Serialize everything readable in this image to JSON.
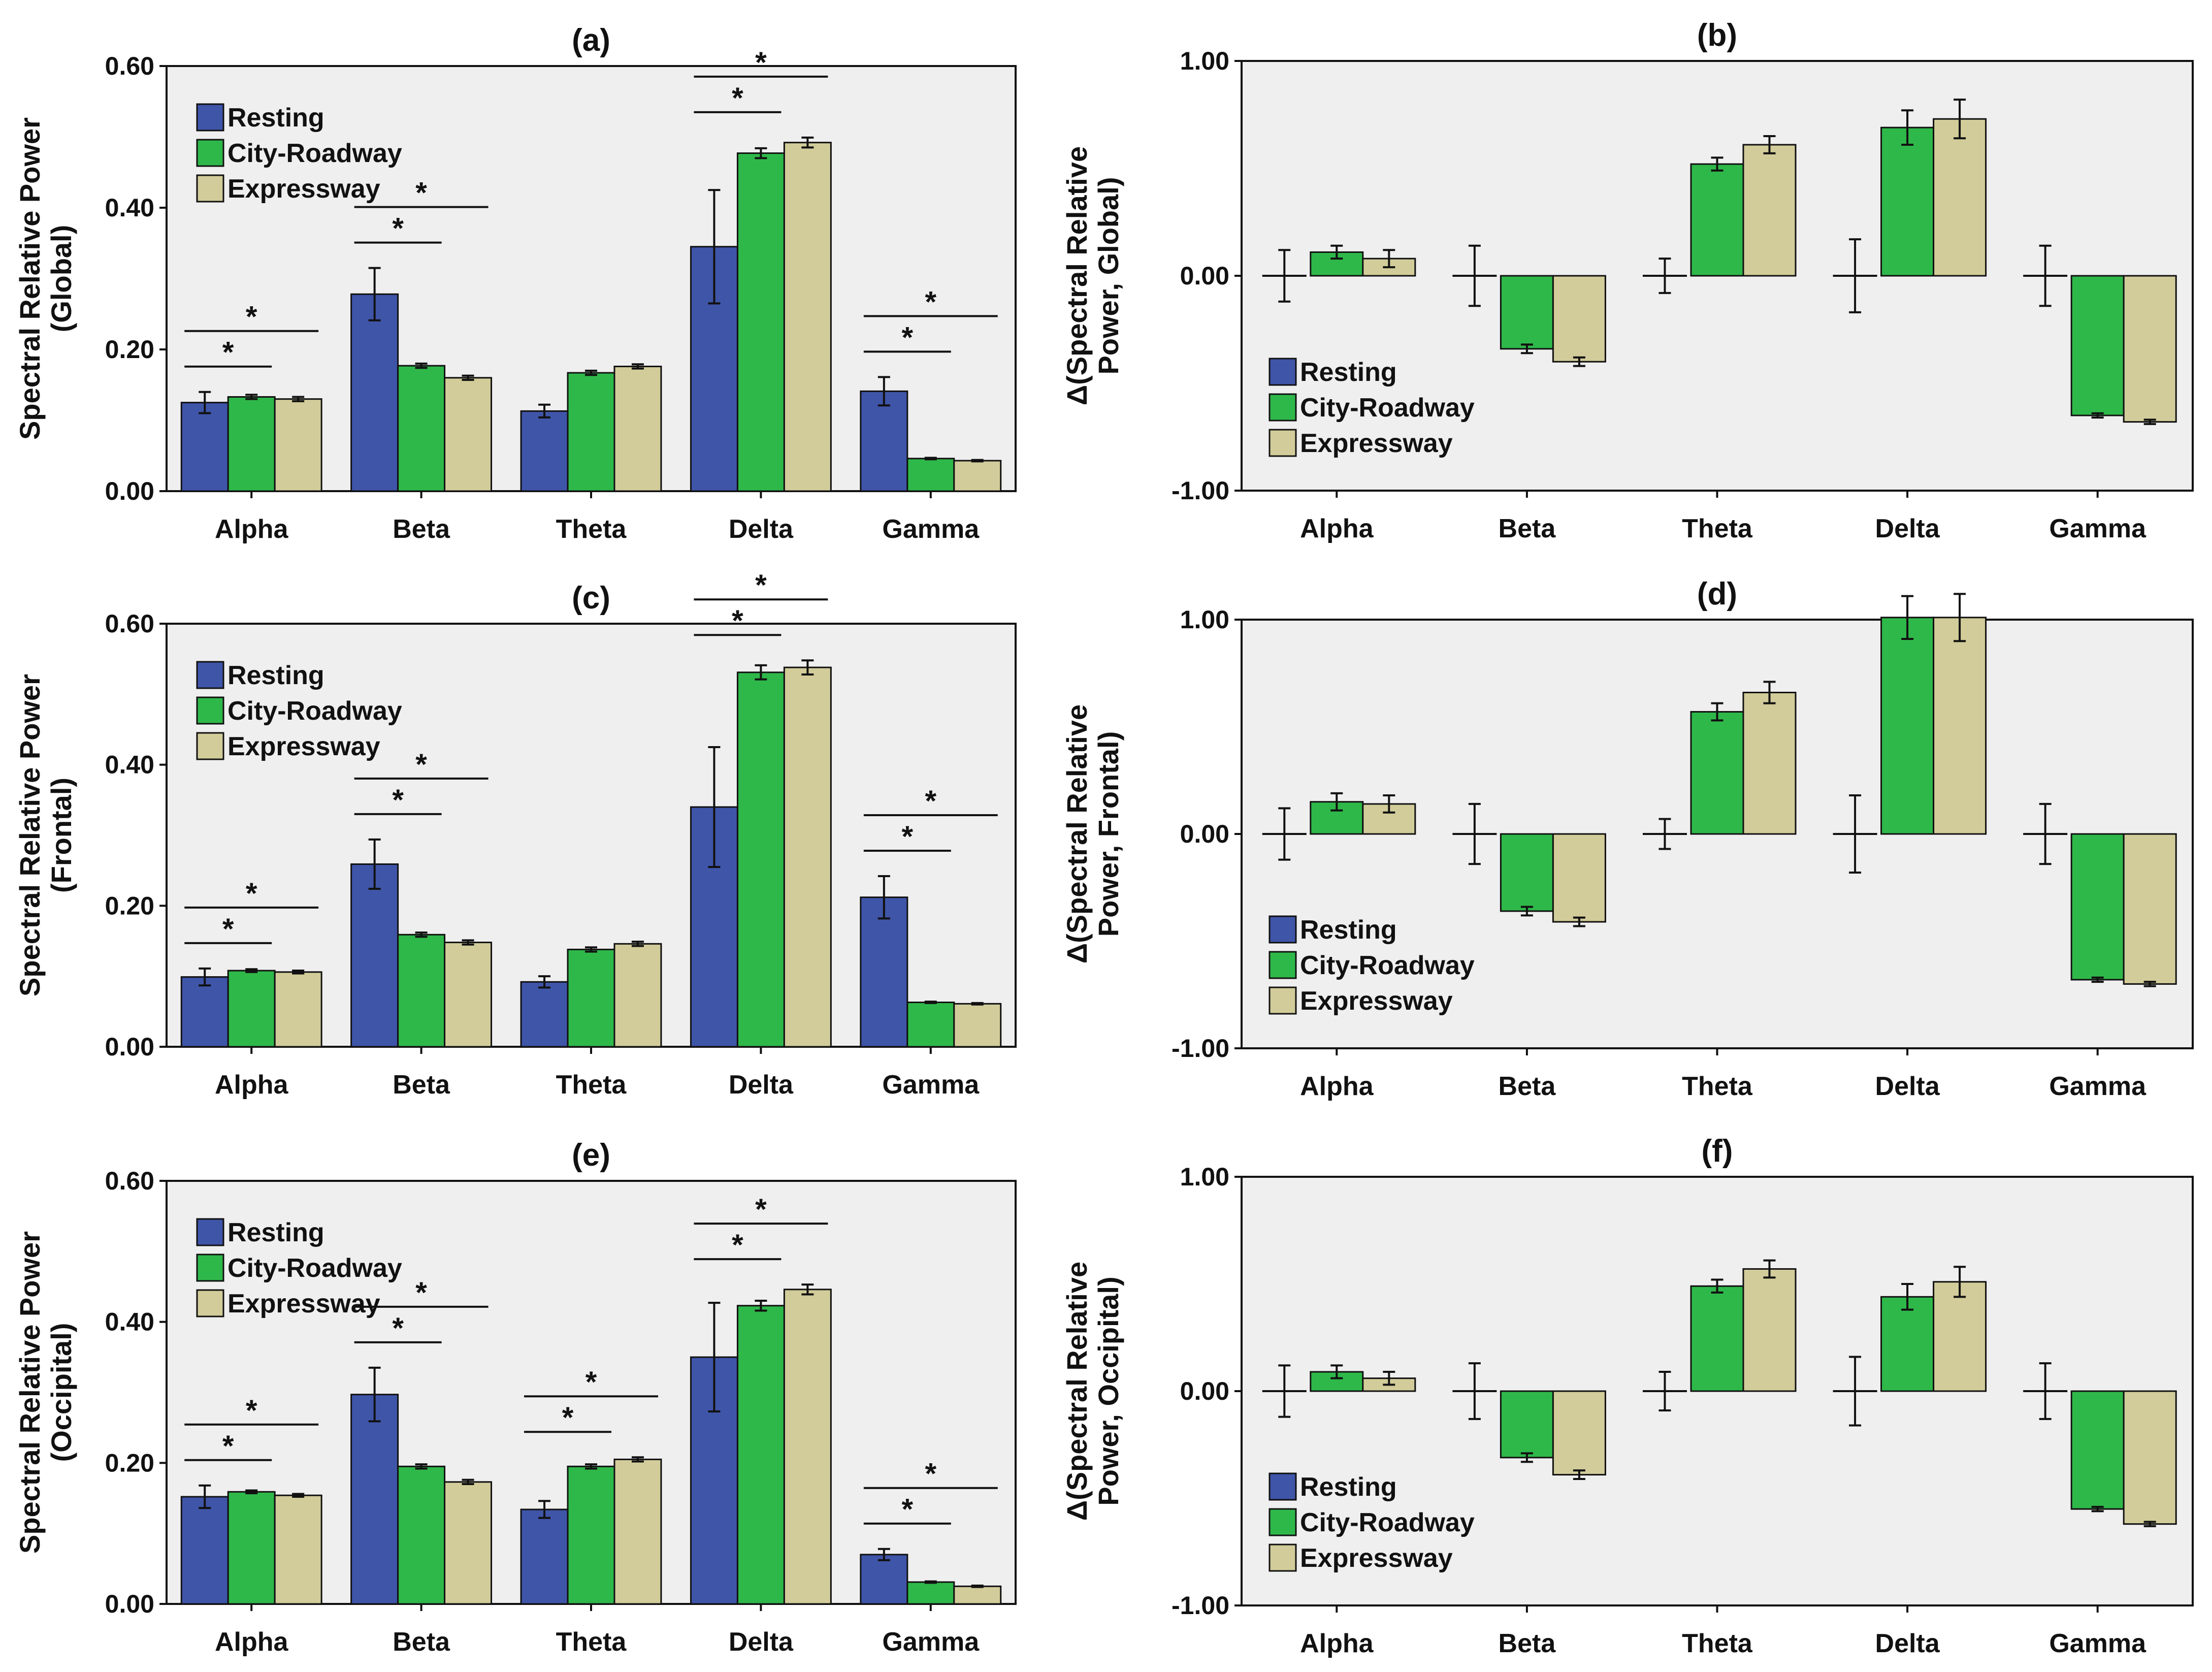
{
  "colors": {
    "resting": "#3f55a8",
    "city_roadway": "#2fb84a",
    "expressway": "#d2cc9a",
    "plot_bg": "#efefef",
    "axis": "#111111"
  },
  "chart_data": [
    {
      "id": "a",
      "title": "(a)",
      "type": "bar",
      "ylabel": [
        "Spectral Relative Power",
        "(Global)"
      ],
      "ylim": [
        0,
        0.6
      ],
      "yticks": [
        "0.00",
        "0.20",
        "0.40",
        "0.60"
      ],
      "ytick_values": [
        0,
        0.2,
        0.4,
        0.6
      ],
      "categories": [
        "Alpha",
        "Beta",
        "Theta",
        "Delta",
        "Gamma"
      ],
      "legend": [
        "Resting",
        "City-Roadway",
        "Expressway"
      ],
      "legend_position": "top-left",
      "series": [
        {
          "name": "Resting",
          "values": [
            0.125,
            0.278,
            0.113,
            0.345,
            0.141
          ],
          "err": [
            0.015,
            0.037,
            0.009,
            0.08,
            0.02
          ]
        },
        {
          "name": "City-Roadway",
          "values": [
            0.133,
            0.177,
            0.167,
            0.477,
            0.046
          ],
          "err": [
            0.003,
            0.003,
            0.003,
            0.007,
            0.001
          ]
        },
        {
          "name": "Expressway",
          "values": [
            0.13,
            0.16,
            0.176,
            0.492,
            0.043
          ],
          "err": [
            0.003,
            0.003,
            0.003,
            0.007,
            0.001
          ]
        }
      ],
      "significance": [
        {
          "category": 0,
          "pairs": [
            [
              0,
              1
            ],
            [
              0,
              2
            ]
          ],
          "label": "*"
        },
        {
          "category": 1,
          "pairs": [
            [
              0,
              1
            ],
            [
              0,
              2
            ]
          ],
          "label": "*"
        },
        {
          "category": 3,
          "pairs": [
            [
              0,
              1
            ],
            [
              0,
              2
            ]
          ],
          "label": "*"
        },
        {
          "category": 4,
          "pairs": [
            [
              0,
              1
            ],
            [
              0,
              2
            ]
          ],
          "label": "*"
        }
      ]
    },
    {
      "id": "b",
      "title": "(b)",
      "type": "bar",
      "ylabel": [
        "Δ(Spectral Relative",
        "Power, Global)"
      ],
      "ylim": [
        -1,
        1.0
      ],
      "yticks": [
        "-1.00",
        "0.00",
        "1.00"
      ],
      "ytick_values": [
        -1,
        0,
        1
      ],
      "categories": [
        "Alpha",
        "Beta",
        "Theta",
        "Delta",
        "Gamma"
      ],
      "legend": [
        "Resting",
        "City-Roadway",
        "Expressway"
      ],
      "legend_position": "bottom-left",
      "series": [
        {
          "name": "Resting",
          "values": [
            0,
            0,
            0,
            0,
            0
          ],
          "err": [
            0.12,
            0.14,
            0.08,
            0.17,
            0.14
          ]
        },
        {
          "name": "City-Roadway",
          "values": [
            0.11,
            -0.34,
            0.52,
            0.69,
            -0.65
          ],
          "err": [
            0.03,
            0.02,
            0.03,
            0.08,
            0.01
          ]
        },
        {
          "name": "Expressway",
          "values": [
            0.08,
            -0.4,
            0.61,
            0.73,
            -0.68
          ],
          "err": [
            0.04,
            0.02,
            0.04,
            0.09,
            0.01
          ]
        }
      ]
    },
    {
      "id": "c",
      "title": "(c)",
      "type": "bar",
      "ylabel": [
        "Spectral Relative Power",
        "(Frontal)"
      ],
      "ylim": [
        0,
        0.6
      ],
      "yticks": [
        "0.00",
        "0.20",
        "0.40",
        "0.60"
      ],
      "ytick_values": [
        0,
        0.2,
        0.4,
        0.6
      ],
      "categories": [
        "Alpha",
        "Beta",
        "Theta",
        "Delta",
        "Gamma"
      ],
      "legend": [
        "Resting",
        "City-Roadway",
        "Expressway"
      ],
      "legend_position": "top-left",
      "series": [
        {
          "name": "Resting",
          "values": [
            0.099,
            0.259,
            0.092,
            0.34,
            0.212
          ],
          "err": [
            0.012,
            0.035,
            0.008,
            0.085,
            0.03
          ]
        },
        {
          "name": "City-Roadway",
          "values": [
            0.108,
            0.159,
            0.138,
            0.531,
            0.063
          ],
          "err": [
            0.002,
            0.003,
            0.003,
            0.01,
            0.001
          ]
        },
        {
          "name": "Expressway",
          "values": [
            0.106,
            0.148,
            0.146,
            0.538,
            0.061
          ],
          "err": [
            0.002,
            0.003,
            0.003,
            0.01,
            0.001
          ]
        }
      ],
      "significance": [
        {
          "category": 0,
          "pairs": [
            [
              0,
              1
            ],
            [
              0,
              2
            ]
          ],
          "label": "*"
        },
        {
          "category": 1,
          "pairs": [
            [
              0,
              1
            ],
            [
              0,
              2
            ]
          ],
          "label": "*"
        },
        {
          "category": 3,
          "pairs": [
            [
              0,
              1
            ],
            [
              0,
              2
            ]
          ],
          "label": "*"
        },
        {
          "category": 4,
          "pairs": [
            [
              0,
              1
            ],
            [
              0,
              2
            ]
          ],
          "label": "*"
        }
      ]
    },
    {
      "id": "d",
      "title": "(d)",
      "type": "bar",
      "ylabel": [
        "Δ(Spectral Relative",
        "Power, Frontal)"
      ],
      "ylim": [
        -1,
        1.0
      ],
      "yticks": [
        "-1.00",
        "0.00",
        "1.00"
      ],
      "ytick_values": [
        -1,
        0,
        1
      ],
      "categories": [
        "Alpha",
        "Beta",
        "Theta",
        "Delta",
        "Gamma"
      ],
      "legend": [
        "Resting",
        "City-Roadway",
        "Expressway"
      ],
      "legend_position": "bottom-left",
      "series": [
        {
          "name": "Resting",
          "values": [
            0,
            0,
            0,
            0,
            0
          ],
          "err": [
            0.12,
            0.14,
            0.07,
            0.18,
            0.14
          ]
        },
        {
          "name": "City-Roadway",
          "values": [
            0.15,
            -0.36,
            0.57,
            1.01,
            -0.68
          ],
          "err": [
            0.04,
            0.02,
            0.04,
            0.1,
            0.01
          ]
        },
        {
          "name": "Expressway",
          "values": [
            0.14,
            -0.41,
            0.66,
            1.01,
            -0.7
          ],
          "err": [
            0.04,
            0.02,
            0.05,
            0.11,
            0.01
          ]
        }
      ]
    },
    {
      "id": "e",
      "title": "(e)",
      "type": "bar",
      "ylabel": [
        "Spectral Relative Power",
        "(Occipital)"
      ],
      "ylim": [
        0,
        0.6
      ],
      "yticks": [
        "0.00",
        "0.20",
        "0.40",
        "0.60"
      ],
      "ytick_values": [
        0,
        0.2,
        0.4,
        0.6
      ],
      "categories": [
        "Alpha",
        "Beta",
        "Theta",
        "Delta",
        "Gamma"
      ],
      "legend": [
        "Resting",
        "City-Roadway",
        "Expressway"
      ],
      "legend_position": "top-left",
      "series": [
        {
          "name": "Resting",
          "values": [
            0.152,
            0.297,
            0.134,
            0.35,
            0.07
          ],
          "err": [
            0.016,
            0.038,
            0.012,
            0.077,
            0.008
          ]
        },
        {
          "name": "City-Roadway",
          "values": [
            0.159,
            0.195,
            0.195,
            0.423,
            0.031
          ],
          "err": [
            0.002,
            0.003,
            0.003,
            0.007,
            0.001
          ]
        },
        {
          "name": "Expressway",
          "values": [
            0.154,
            0.173,
            0.205,
            0.446,
            0.025
          ],
          "err": [
            0.002,
            0.003,
            0.003,
            0.007,
            0.001
          ]
        }
      ],
      "significance": [
        {
          "category": 0,
          "pairs": [
            [
              0,
              1
            ],
            [
              0,
              2
            ]
          ],
          "label": "*"
        },
        {
          "category": 1,
          "pairs": [
            [
              0,
              1
            ],
            [
              0,
              2
            ]
          ],
          "label": "*"
        },
        {
          "category": 2,
          "pairs": [
            [
              0,
              1
            ],
            [
              0,
              2
            ]
          ],
          "label": "*"
        },
        {
          "category": 3,
          "pairs": [
            [
              0,
              1
            ],
            [
              0,
              2
            ]
          ],
          "label": "*"
        },
        {
          "category": 4,
          "pairs": [
            [
              0,
              1
            ],
            [
              0,
              2
            ]
          ],
          "label": "*"
        }
      ]
    },
    {
      "id": "f",
      "title": "(f)",
      "type": "bar",
      "ylabel": [
        "Δ(Spectral Relative",
        "Power, Occipital)"
      ],
      "ylim": [
        -1,
        1.0
      ],
      "yticks": [
        "-1.00",
        "0.00",
        "1.00"
      ],
      "ytick_values": [
        -1,
        0,
        1
      ],
      "categories": [
        "Alpha",
        "Beta",
        "Theta",
        "Delta",
        "Gamma"
      ],
      "legend": [
        "Resting",
        "City-Roadway",
        "Expressway"
      ],
      "legend_position": "bottom-left",
      "series": [
        {
          "name": "Resting",
          "values": [
            0,
            0,
            0,
            0,
            0
          ],
          "err": [
            0.12,
            0.13,
            0.09,
            0.16,
            0.13
          ]
        },
        {
          "name": "City-Roadway",
          "values": [
            0.09,
            -0.31,
            0.49,
            0.44,
            -0.55
          ],
          "err": [
            0.03,
            0.02,
            0.03,
            0.06,
            0.01
          ]
        },
        {
          "name": "Expressway",
          "values": [
            0.06,
            -0.39,
            0.57,
            0.51,
            -0.62
          ],
          "err": [
            0.03,
            0.02,
            0.04,
            0.07,
            0.01
          ]
        }
      ]
    }
  ]
}
